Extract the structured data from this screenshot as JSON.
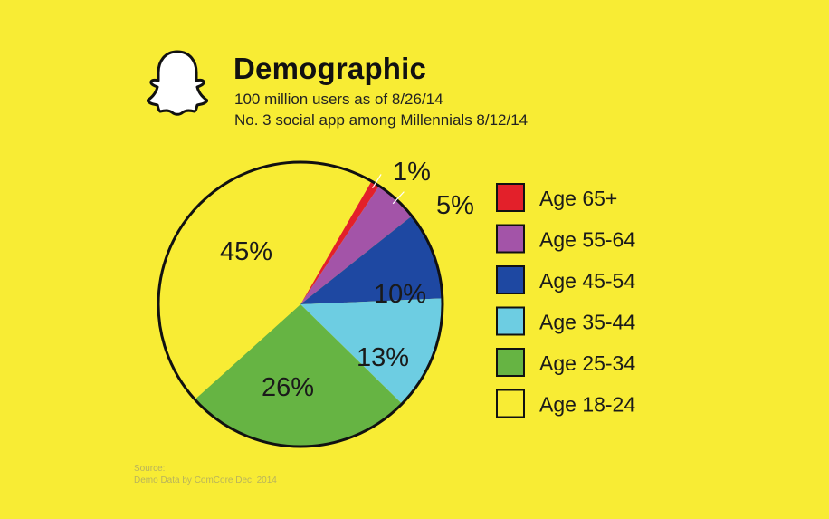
{
  "header": {
    "title": "Demographic",
    "subtitle_line1": "100 million users as of 8/26/14",
    "subtitle_line2": "No. 3 social app among Millennials 8/12/14"
  },
  "source": {
    "label": "Source:",
    "text": "Demo Data by ComCore Dec, 2014"
  },
  "colors": {
    "background": "#f8ec34",
    "outline": "#111111"
  },
  "logo": "snapchat-ghost-icon",
  "chart_data": {
    "type": "pie",
    "legend_position": "right",
    "slices": [
      {
        "label": "Age 65+",
        "value": 1,
        "display": "1%",
        "color": "#e3202a"
      },
      {
        "label": "Age 55-64",
        "value": 5,
        "display": "5%",
        "color": "#a354a8"
      },
      {
        "label": "Age 45-54",
        "value": 10,
        "display": "10%",
        "color": "#1e48a2"
      },
      {
        "label": "Age 35-44",
        "value": 13,
        "display": "13%",
        "color": "#6dcde2"
      },
      {
        "label": "Age 25-34",
        "value": 26,
        "display": "26%",
        "color": "#66b443"
      },
      {
        "label": "Age 18-24",
        "value": 45,
        "display": "45%",
        "color": "#f8ec34"
      }
    ]
  }
}
